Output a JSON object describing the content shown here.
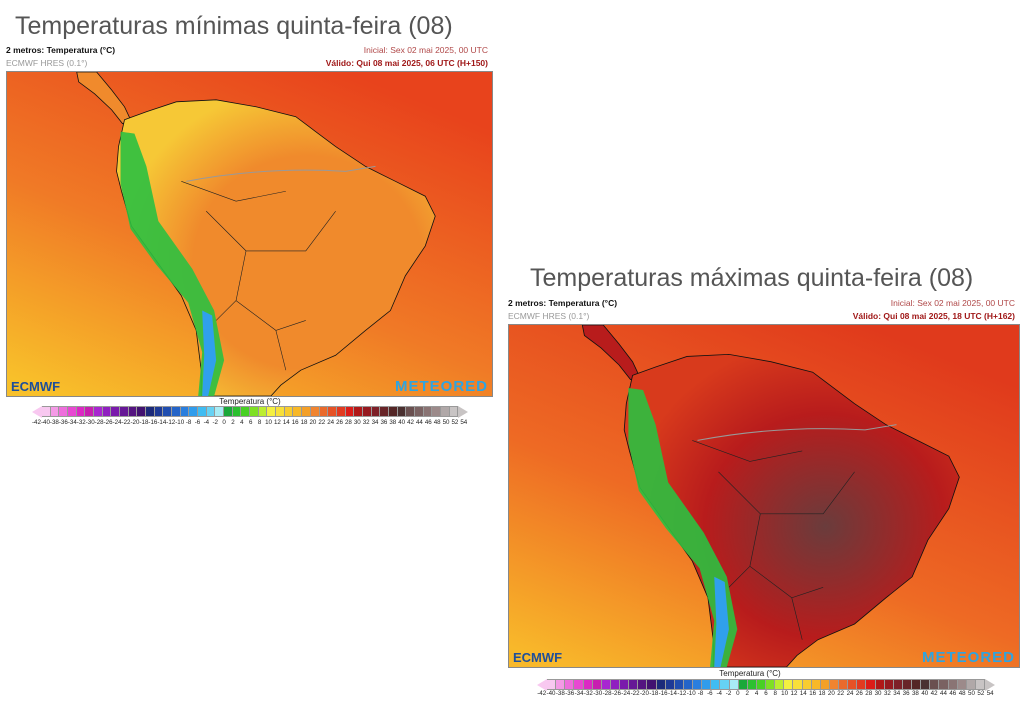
{
  "panels": [
    {
      "title": "Temperaturas mínimas quinta-feira (08)",
      "variable": "2 metros: Temperatura (°C)",
      "model": "ECMWF HRES (0.1°)",
      "initial": "Inicial: Sex 02 mai 2025, 00 UTC",
      "valid": "Válido: Qui 08 mai 2025, 06 UTC (H+150)",
      "logo_left": "ECMWF",
      "logo_right": "METEORED",
      "colors": {
        "ocean_top": "#e8431c",
        "ocean_mid": "#f07a26",
        "ocean_bottom": "#f8c02a",
        "land": "#f08a2c",
        "land_south": "#f6c836",
        "andes": "#2cc040",
        "andes_high": "#30a0ec"
      }
    },
    {
      "title": "Temperaturas máximas quinta-feira (08)",
      "variable": "2 metros: Temperatura (°C)",
      "model": "ECMWF HRES (0.1°)",
      "initial": "Inicial: Sex 02 mai 2025, 00 UTC",
      "valid": "Válido: Qui 08 mai 2025, 18 UTC (H+162)",
      "logo_left": "ECMWF",
      "logo_right": "METEORED",
      "colors": {
        "ocean_top": "#e03a1c",
        "ocean_mid": "#ee6a24",
        "ocean_bottom": "#f8b82a",
        "land": "#b81c1c",
        "land_south": "#d83a1c",
        "land_core": "#6a3c3c",
        "andes": "#2cc040",
        "andes_high": "#30a0ec"
      }
    }
  ],
  "legend": {
    "title": "Temperatura (°C)",
    "ticks": [
      "-42",
      "-40",
      "-38",
      "-36",
      "-34",
      "-32",
      "-30",
      "-28",
      "-26",
      "-24",
      "-22",
      "-20",
      "-18",
      "-16",
      "-14",
      "-12",
      "-10",
      "-8",
      "-6",
      "-4",
      "-2",
      "0",
      "2",
      "4",
      "6",
      "8",
      "10",
      "12",
      "14",
      "16",
      "18",
      "20",
      "22",
      "24",
      "26",
      "28",
      "30",
      "32",
      "34",
      "36",
      "38",
      "40",
      "42",
      "44",
      "46",
      "48",
      "50",
      "52",
      "54"
    ],
    "colors": [
      "#f8c8f0",
      "#f49ae6",
      "#ee6edc",
      "#e848d2",
      "#dc28c4",
      "#c81eb0",
      "#a826d0",
      "#9020c0",
      "#7a1aac",
      "#661896",
      "#541480",
      "#421270",
      "#1c2a7a",
      "#1e3a96",
      "#204eb0",
      "#2464c8",
      "#2a7ede",
      "#309cec",
      "#40bcf2",
      "#66d2f4",
      "#a8ecf6",
      "#1aa83a",
      "#2cc030",
      "#48d024",
      "#7ee024",
      "#bcee30",
      "#f4f040",
      "#f8e03a",
      "#f8cc30",
      "#f8b828",
      "#f4a028",
      "#f08430",
      "#ea6a2c",
      "#e65226",
      "#e23a20",
      "#dc1c18",
      "#b01818",
      "#961a20",
      "#7e2028",
      "#682428",
      "#542626",
      "#4a3030",
      "#6a5050",
      "#7a6262",
      "#8a7474",
      "#9c8a8a",
      "#b0a8a8",
      "#c8c4c4"
    ]
  }
}
